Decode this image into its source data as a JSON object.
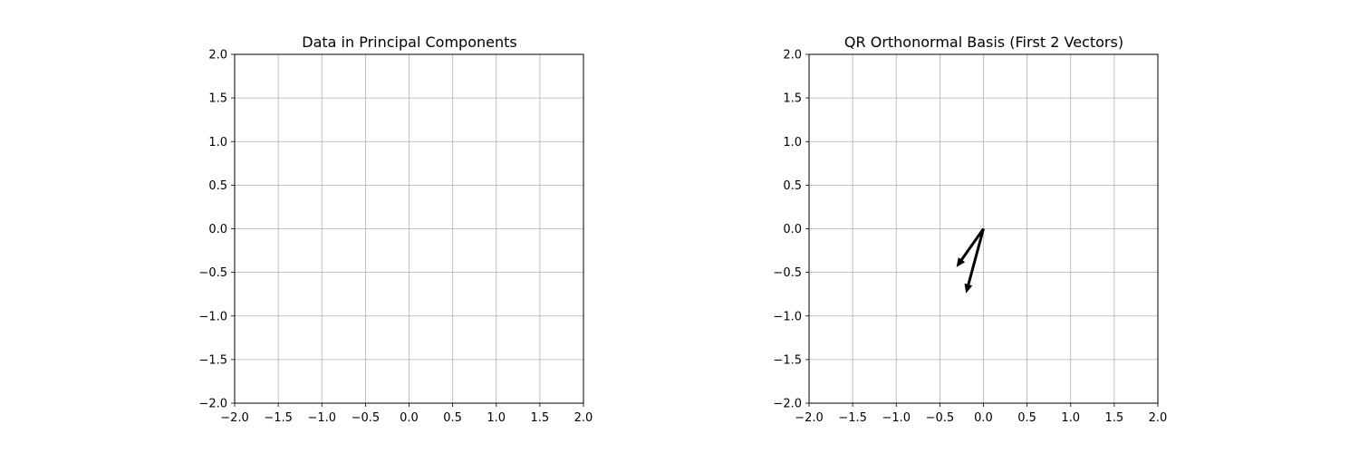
{
  "chart_data": [
    {
      "type": "scatter",
      "title": "Data in Principal Components",
      "xlabel": "",
      "ylabel": "",
      "xlim": [
        -2.0,
        2.0
      ],
      "ylim": [
        -2.0,
        2.0
      ],
      "xticks": [
        "−2.0",
        "−1.5",
        "−1.0",
        "−0.5",
        "0.0",
        "0.5",
        "1.0",
        "1.5",
        "2.0"
      ],
      "yticks": [
        "−2.0",
        "−1.5",
        "−1.0",
        "−0.5",
        "0.0",
        "0.5",
        "1.0",
        "1.5",
        "2.0"
      ],
      "grid": true,
      "points": []
    },
    {
      "type": "quiver",
      "title": "QR Orthonormal Basis (First 2 Vectors)",
      "xlabel": "",
      "ylabel": "",
      "xlim": [
        -2.0,
        2.0
      ],
      "ylim": [
        -2.0,
        2.0
      ],
      "xticks": [
        "−2.0",
        "−1.5",
        "−1.0",
        "−0.5",
        "0.0",
        "0.5",
        "1.0",
        "1.5",
        "2.0"
      ],
      "yticks": [
        "−2.0",
        "−1.5",
        "−1.0",
        "−0.5",
        "0.0",
        "0.5",
        "1.0",
        "1.5",
        "2.0"
      ],
      "grid": true,
      "vectors": [
        {
          "x0": 0.0,
          "y0": 0.0,
          "dx": -0.31,
          "dy": -0.44
        },
        {
          "x0": 0.0,
          "y0": 0.0,
          "dx": -0.2,
          "dy": -0.74
        }
      ]
    }
  ],
  "colors": {
    "grid": "#b0b0b0",
    "axis": "#000000",
    "arrow": "#000000"
  }
}
